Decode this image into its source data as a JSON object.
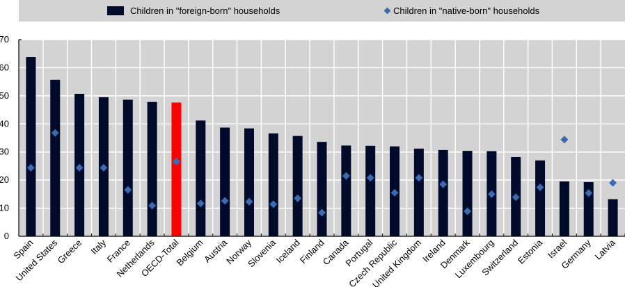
{
  "legend": {
    "series1": "Children in \"foreign-born\" households",
    "series2": "Children in \"native-born\" households"
  },
  "colors": {
    "bar": "#000a2a",
    "highlight_bar": "#ff0000",
    "marker": "#3a6ab4",
    "plot_background": "#d3d3d3",
    "grid": "#ffffff"
  },
  "chart_data": {
    "type": "bar",
    "title": "",
    "xlabel": "",
    "ylabel": "",
    "ylim": [
      0,
      70
    ],
    "yticks": [
      0,
      10,
      20,
      30,
      40,
      50,
      60,
      70
    ],
    "grid": true,
    "legend_position": "top",
    "highlight_category": "OECD-Total",
    "categories": [
      "Spain",
      "United States",
      "Greece",
      "Italy",
      "France",
      "Netherlands",
      "OECD-Total",
      "Belgium",
      "Austria",
      "Norway",
      "Slovenia",
      "Iceland",
      "Finland",
      "Canada",
      "Portugal",
      "Czech Republic",
      "United Kingdom",
      "Ireland",
      "Denmark",
      "Luxembourg",
      "Switzerland",
      "Estonia",
      "Israel",
      "Germany",
      "Latvia"
    ],
    "series": [
      {
        "name": "Children in \"foreign-born\" households",
        "type": "bar",
        "values": [
          63.8,
          55.7,
          50.7,
          49.5,
          48.6,
          47.8,
          47.6,
          41.2,
          38.7,
          38.4,
          36.6,
          35.7,
          33.6,
          32.3,
          32.2,
          32.0,
          31.2,
          30.7,
          30.4,
          30.3,
          28.2,
          27.0,
          19.5,
          19.3,
          13.2
        ]
      },
      {
        "name": "Children in \"native-born\" households",
        "type": "scatter",
        "marker": "diamond",
        "values": [
          24.4,
          36.8,
          24.4,
          24.4,
          16.5,
          10.9,
          26.6,
          11.7,
          12.6,
          12.3,
          11.4,
          13.5,
          8.4,
          21.5,
          20.8,
          15.5,
          20.8,
          18.5,
          8.9,
          15.0,
          13.9,
          17.4,
          34.4,
          15.4,
          19.0
        ]
      }
    ]
  }
}
